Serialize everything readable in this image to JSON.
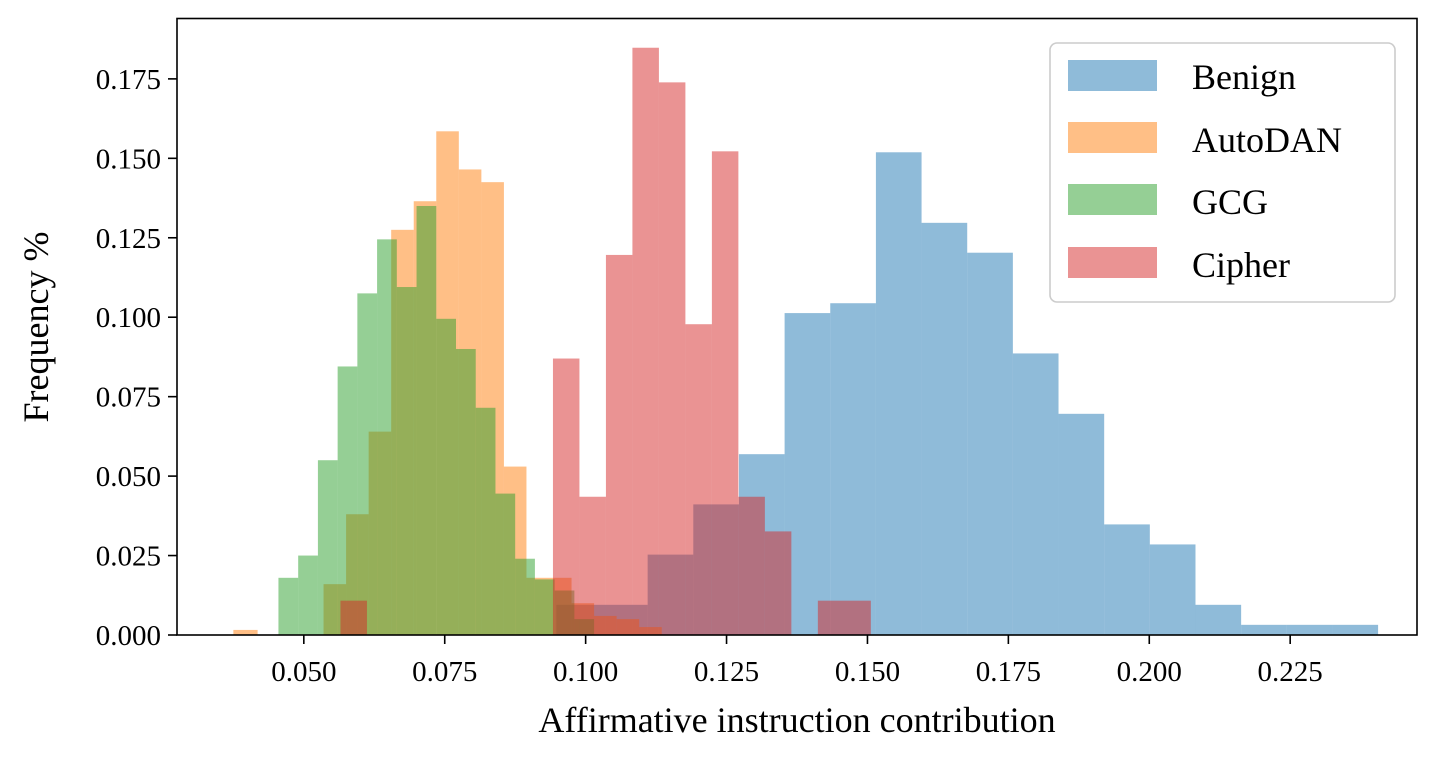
{
  "chart_data": {
    "type": "histogram",
    "title": "",
    "xlabel": "Affirmative instruction contribution",
    "ylabel": "Frequency %",
    "xlim": [
      0.0275,
      0.2475
    ],
    "ylim": [
      0.0,
      0.194
    ],
    "xticks": [
      0.05,
      0.075,
      0.1,
      0.125,
      0.15,
      0.175,
      0.2,
      0.225
    ],
    "xtick_labels": [
      "0.050",
      "0.075",
      "0.100",
      "0.125",
      "0.150",
      "0.175",
      "0.200",
      "0.225"
    ],
    "yticks": [
      0.0,
      0.025,
      0.05,
      0.075,
      0.1,
      0.125,
      0.15,
      0.175
    ],
    "ytick_labels": [
      "0.000",
      "0.025",
      "0.050",
      "0.075",
      "0.100",
      "0.125",
      "0.150",
      "0.175"
    ],
    "grid": false,
    "legend_position": "top-right",
    "series": [
      {
        "name": "Benign",
        "color": "#1f77b4",
        "alpha": 0.5,
        "bins": [
          {
            "x0": 0.0948,
            "x1": 0.1029,
            "y": 0.0095
          },
          {
            "x0": 0.1029,
            "x1": 0.111,
            "y": 0.0095
          },
          {
            "x0": 0.111,
            "x1": 0.1191,
            "y": 0.0253
          },
          {
            "x0": 0.1191,
            "x1": 0.1272,
            "y": 0.0411
          },
          {
            "x0": 0.1272,
            "x1": 0.1353,
            "y": 0.0569
          },
          {
            "x0": 0.1353,
            "x1": 0.1434,
            "y": 0.1013
          },
          {
            "x0": 0.1434,
            "x1": 0.1515,
            "y": 0.1044
          },
          {
            "x0": 0.1515,
            "x1": 0.1596,
            "y": 0.1519
          },
          {
            "x0": 0.1596,
            "x1": 0.1677,
            "y": 0.1297
          },
          {
            "x0": 0.1677,
            "x1": 0.1758,
            "y": 0.1203
          },
          {
            "x0": 0.1758,
            "x1": 0.1839,
            "y": 0.0886
          },
          {
            "x0": 0.1839,
            "x1": 0.192,
            "y": 0.0696
          },
          {
            "x0": 0.192,
            "x1": 0.2001,
            "y": 0.0348
          },
          {
            "x0": 0.2001,
            "x1": 0.2082,
            "y": 0.0285
          },
          {
            "x0": 0.2082,
            "x1": 0.2163,
            "y": 0.0095
          },
          {
            "x0": 0.2163,
            "x1": 0.2244,
            "y": 0.0032
          },
          {
            "x0": 0.2244,
            "x1": 0.2325,
            "y": 0.0032
          },
          {
            "x0": 0.2325,
            "x1": 0.2406,
            "y": 0.0032
          }
        ]
      },
      {
        "name": "AutoDAN",
        "color": "#ff7f0e",
        "alpha": 0.5,
        "bins": [
          {
            "x0": 0.0375,
            "x1": 0.0418,
            "y": 0.0016
          },
          {
            "x0": 0.0535,
            "x1": 0.0575,
            "y": 0.016
          },
          {
            "x0": 0.0575,
            "x1": 0.0615,
            "y": 0.038
          },
          {
            "x0": 0.0615,
            "x1": 0.0655,
            "y": 0.064
          },
          {
            "x0": 0.0655,
            "x1": 0.0695,
            "y": 0.1275
          },
          {
            "x0": 0.0695,
            "x1": 0.0735,
            "y": 0.1365
          },
          {
            "x0": 0.0735,
            "x1": 0.0775,
            "y": 0.1585
          },
          {
            "x0": 0.0775,
            "x1": 0.0815,
            "y": 0.1465
          },
          {
            "x0": 0.0815,
            "x1": 0.0855,
            "y": 0.1425
          },
          {
            "x0": 0.0855,
            "x1": 0.0895,
            "y": 0.053
          },
          {
            "x0": 0.0895,
            "x1": 0.0935,
            "y": 0.018
          },
          {
            "x0": 0.0935,
            "x1": 0.0975,
            "y": 0.018
          },
          {
            "x0": 0.0975,
            "x1": 0.1015,
            "y": 0.01
          },
          {
            "x0": 0.1015,
            "x1": 0.1055,
            "y": 0.006
          },
          {
            "x0": 0.1055,
            "x1": 0.1095,
            "y": 0.005
          },
          {
            "x0": 0.1095,
            "x1": 0.1135,
            "y": 0.0025
          }
        ]
      },
      {
        "name": "GCG",
        "color": "#2ca02c",
        "alpha": 0.5,
        "bins": [
          {
            "x0": 0.0455,
            "x1": 0.049,
            "y": 0.018
          },
          {
            "x0": 0.049,
            "x1": 0.0525,
            "y": 0.025
          },
          {
            "x0": 0.0525,
            "x1": 0.056,
            "y": 0.055
          },
          {
            "x0": 0.056,
            "x1": 0.0595,
            "y": 0.0845
          },
          {
            "x0": 0.0595,
            "x1": 0.063,
            "y": 0.1075
          },
          {
            "x0": 0.063,
            "x1": 0.0665,
            "y": 0.1245
          },
          {
            "x0": 0.0665,
            "x1": 0.07,
            "y": 0.1095
          },
          {
            "x0": 0.07,
            "x1": 0.0735,
            "y": 0.135
          },
          {
            "x0": 0.0735,
            "x1": 0.077,
            "y": 0.0995
          },
          {
            "x0": 0.077,
            "x1": 0.0805,
            "y": 0.09
          },
          {
            "x0": 0.0805,
            "x1": 0.084,
            "y": 0.0715
          },
          {
            "x0": 0.084,
            "x1": 0.0875,
            "y": 0.0445
          },
          {
            "x0": 0.0875,
            "x1": 0.091,
            "y": 0.024
          },
          {
            "x0": 0.091,
            "x1": 0.0945,
            "y": 0.0175
          },
          {
            "x0": 0.0945,
            "x1": 0.098,
            "y": 0.014
          },
          {
            "x0": 0.098,
            "x1": 0.1015,
            "y": 0.005
          }
        ]
      },
      {
        "name": "Cipher",
        "color": "#d62728",
        "alpha": 0.5,
        "bins": [
          {
            "x0": 0.0565,
            "x1": 0.0612,
            "y": 0.0108
          },
          {
            "x0": 0.0942,
            "x1": 0.0989,
            "y": 0.087
          },
          {
            "x0": 0.0989,
            "x1": 0.1036,
            "y": 0.0435
          },
          {
            "x0": 0.1036,
            "x1": 0.1083,
            "y": 0.1196
          },
          {
            "x0": 0.1083,
            "x1": 0.113,
            "y": 0.1848
          },
          {
            "x0": 0.113,
            "x1": 0.1177,
            "y": 0.1739
          },
          {
            "x0": 0.1177,
            "x1": 0.1224,
            "y": 0.0978
          },
          {
            "x0": 0.1224,
            "x1": 0.1271,
            "y": 0.1522
          },
          {
            "x0": 0.1271,
            "x1": 0.1318,
            "y": 0.0435
          },
          {
            "x0": 0.1318,
            "x1": 0.1365,
            "y": 0.0326
          },
          {
            "x0": 0.1412,
            "x1": 0.1506,
            "y": 0.0108
          }
        ]
      }
    ]
  }
}
